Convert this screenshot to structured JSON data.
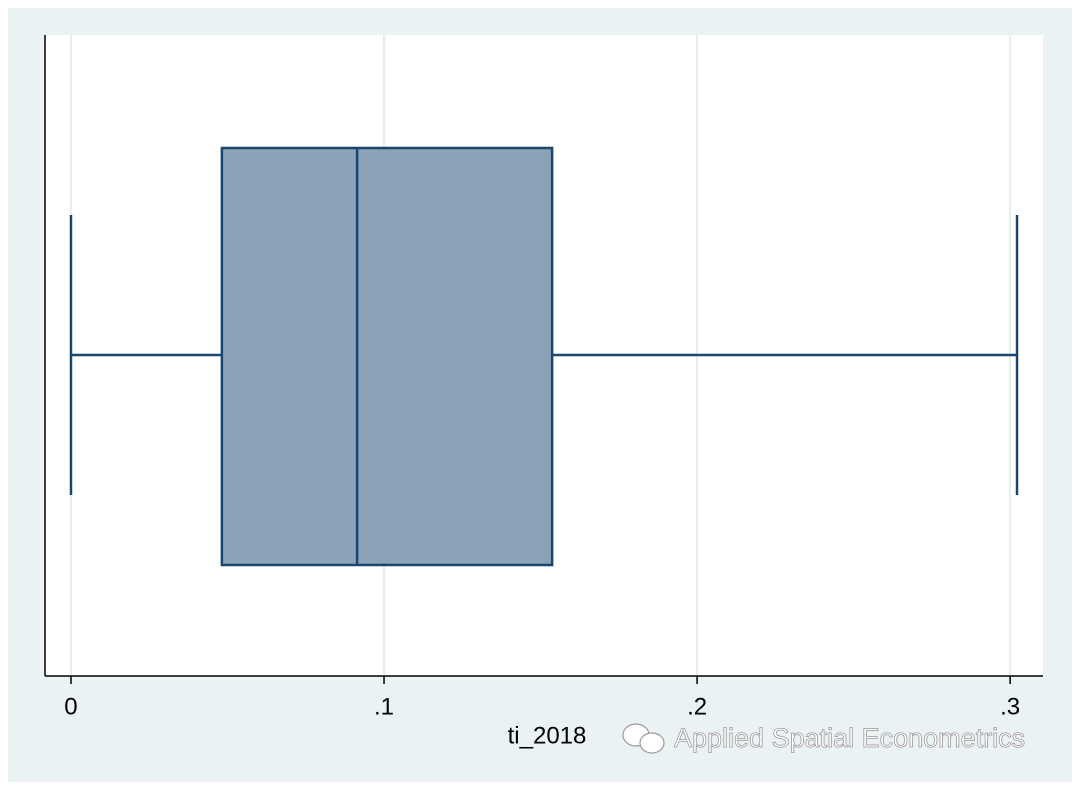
{
  "chart_data": {
    "type": "box",
    "x_label": "ti_2018",
    "min": 0.0,
    "q1": 0.0482,
    "median": 0.0914,
    "q3": 0.1537,
    "max": 0.3022,
    "color": "#8ca2b7",
    "edge_color": "#1a476f",
    "xlim": [
      -0.0083,
      0.3105
    ],
    "xticks": [
      0,
      {
        "value": 0.1,
        "label": ".1"
      },
      {
        "value": 0.2,
        "label": ".2"
      },
      {
        "value": 0.3,
        "label": ".3"
      }
    ],
    "grid": true
  },
  "watermark": "Applied Spatial Econometrics"
}
